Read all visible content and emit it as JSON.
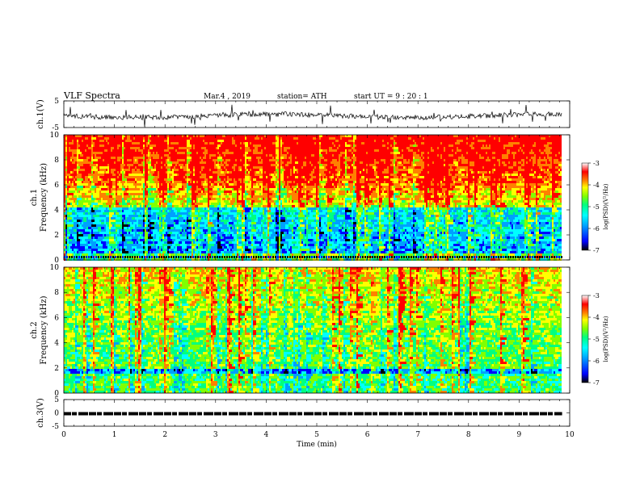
{
  "header": {
    "title": "VLF  Spectra",
    "date": "Mar.4  , 2019",
    "station": "station= ATH",
    "start": "start  UT  =   9  : 20 : 1"
  },
  "colors": {
    "trace": "#000000",
    "colormap": [
      "#000000",
      "#0000ff",
      "#00a0ff",
      "#00ffff",
      "#00ff80",
      "#80ff00",
      "#ffff00",
      "#ff8000",
      "#ff0000",
      "#ffffff"
    ]
  },
  "chart_data": [
    {
      "type": "line",
      "ylabel": "ch.1(V)",
      "ylim": [
        -5,
        5
      ],
      "yticks": [
        "5",
        "-5"
      ],
      "xlim": [
        0,
        10
      ],
      "series": [
        {
          "values_description_level": 0
        }
      ]
    },
    {
      "type": "heatmap",
      "ylabel": "ch.1\nFrequency (kHz)",
      "ylim": [
        0,
        10
      ],
      "yticks": [
        "0",
        "2",
        "4",
        "6",
        "8",
        "10"
      ],
      "xlim": [
        0,
        10
      ],
      "data_extent_min": 9.85,
      "colorbar": {
        "label": "log(PSD)(V²/Hz)",
        "range": [
          -7,
          -3
        ],
        "ticks": [
          "-3",
          "-4",
          "-5",
          "-6",
          "-7"
        ]
      }
    },
    {
      "type": "heatmap",
      "ylabel": "ch.2\nFrequency (kHz)",
      "ylim": [
        0,
        10
      ],
      "yticks": [
        "0",
        "2",
        "4",
        "6",
        "8",
        "10"
      ],
      "xlim": [
        0,
        10
      ],
      "data_extent_min": 9.85,
      "colorbar": {
        "label": "log(PSD)(V²/Hz)",
        "range": [
          -7,
          -3
        ],
        "ticks": [
          "-3",
          "-4",
          "-5",
          "-6",
          "-7"
        ]
      }
    },
    {
      "type": "line",
      "ylabel": "ch.3(V)",
      "ylim": [
        -5,
        5
      ],
      "yticks": [
        "5",
        "0",
        "-5"
      ],
      "xlim": [
        0,
        10
      ],
      "xlabel": "Time  (min)",
      "xticks": [
        "0",
        "1",
        "2",
        "3",
        "4",
        "5",
        "6",
        "7",
        "8",
        "9",
        "10"
      ]
    }
  ]
}
